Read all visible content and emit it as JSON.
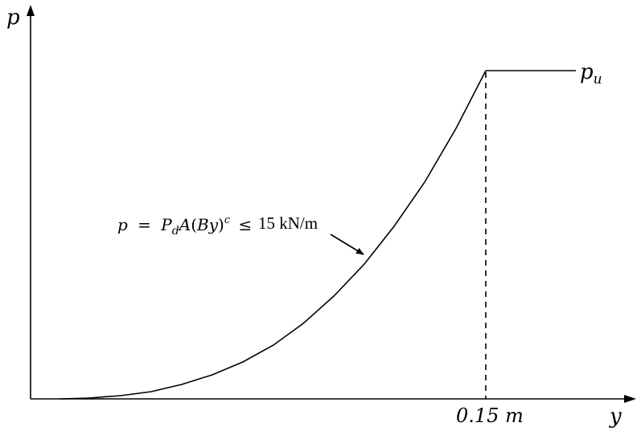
{
  "axes": {
    "y_axis_label": "p",
    "x_axis_label": "y"
  },
  "cap": {
    "label_main": "p",
    "label_sub": "u",
    "x_position_label": "0.15 m"
  },
  "equation": {
    "p": "p",
    "equals": "=",
    "Pd_main": "P",
    "Pd_sub": "d",
    "A": "A",
    "lparen": "(",
    "B": "B",
    "y": "y",
    "rparen": ")",
    "c": "c",
    "le": "≤",
    "bound": "15 kN/m"
  },
  "colors": {
    "line": "#000000",
    "background": "#ffffff"
  }
}
